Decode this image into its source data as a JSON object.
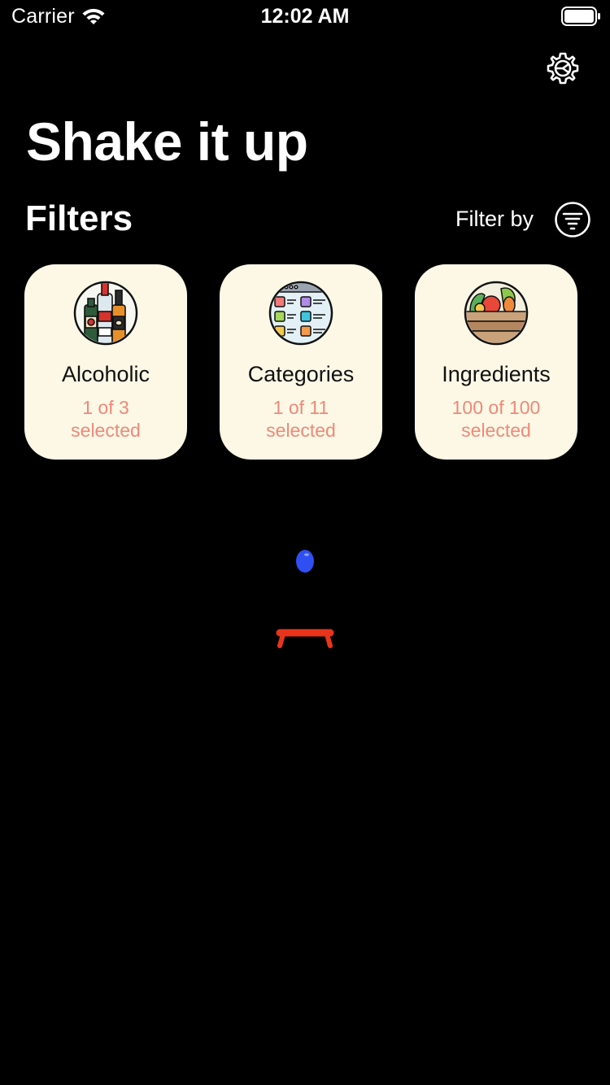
{
  "status_bar": {
    "carrier": "Carrier",
    "time": "12:02 AM"
  },
  "header": {
    "title": "Shake it up"
  },
  "filters": {
    "title": "Filters",
    "filter_by_label": "Filter by",
    "cards": [
      {
        "label": "Alcoholic",
        "count": "1 of 3",
        "suffix": "selected",
        "icon": "bottles-icon"
      },
      {
        "label": "Categories",
        "count": "1 of 11",
        "suffix": "selected",
        "icon": "categories-list-icon"
      },
      {
        "label": "Ingredients",
        "count": "100 of 100",
        "suffix": "selected",
        "icon": "produce-crate-icon"
      }
    ]
  },
  "colors": {
    "background": "#000000",
    "card_background": "#fdf8e6",
    "count_text": "#f08878",
    "mascot_body": "#2f4ff2",
    "mascot_base": "#e7341b"
  }
}
